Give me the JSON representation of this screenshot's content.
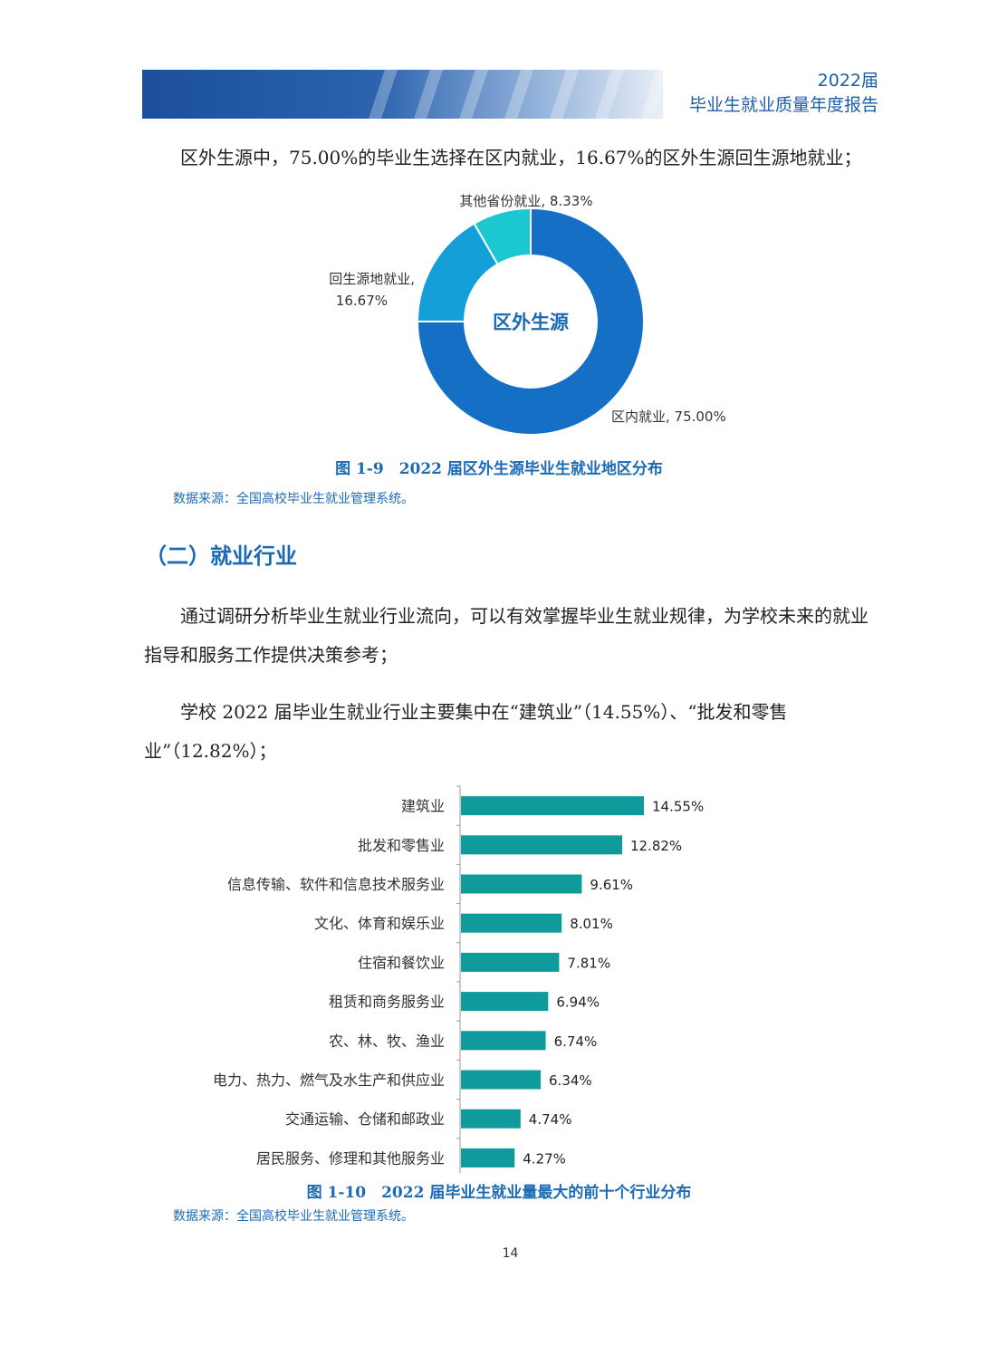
{
  "header": {
    "year_label": "2022届",
    "report_title": "毕业生就业质量年度报告"
  },
  "paragraphs": {
    "p1": "区外生源中，75.00%的毕业生选择在区内就业，16.67%的区外生源回生源地就业；",
    "p2": "通过调研分析毕业生就业行业流向，可以有效掌握毕业生就业规律，为学校未来的就业指导和服务工作提供决策参考；",
    "p3": "学校 2022 届毕业生就业行业主要集中在“建筑业”（14.55%）、“批发和零售业”（12.82%）；"
  },
  "section_heading": "（二）就业行业",
  "figure_1_9": {
    "caption": "图 1-9　2022 届区外生源毕业生就业地区分布",
    "source": "数据来源：全国高校毕业生就业管理系统。"
  },
  "figure_1_10": {
    "caption": "图 1-10　2022 届毕业生就业量最大的前十个行业分布",
    "source": "数据来源：全国高校毕业生就业管理系统。"
  },
  "page_number": "14",
  "colors": {
    "header_blue": "#1b4f9c",
    "heading_blue": "#1b6ab4",
    "bar_teal": "#0f9b9b",
    "donut_main": "#1570c5",
    "donut_mid": "#159fd9",
    "donut_small": "#1cc8d0"
  },
  "chart_data": [
    {
      "type": "pie",
      "center_label": "区外生源",
      "slices": [
        {
          "label": "区内就业",
          "value": 75.0,
          "value_label": "75.00%",
          "color": "#1570c5"
        },
        {
          "label": "回生源地就业",
          "value": 16.67,
          "value_label": "16.67%",
          "color": "#159fd9"
        },
        {
          "label": "其他省份就业",
          "value": 8.33,
          "value_label": "8.33%",
          "color": "#1cc8d0"
        }
      ]
    },
    {
      "type": "bar",
      "orientation": "horizontal",
      "categories": [
        "建筑业",
        "批发和零售业",
        "信息传输、软件和信息技术服务业",
        "文化、体育和娱乐业",
        "住宿和餐饮业",
        "租赁和商务服务业",
        "农、林、牧、渔业",
        "电力、热力、燃气及水生产和供应业",
        "交通运输、仓储和邮政业",
        "居民服务、修理和其他服务业"
      ],
      "values": [
        14.55,
        12.82,
        9.61,
        8.01,
        7.81,
        6.94,
        6.74,
        6.34,
        4.74,
        4.27
      ],
      "value_labels": [
        "14.55%",
        "12.82%",
        "9.61%",
        "8.01%",
        "7.81%",
        "6.94%",
        "6.74%",
        "6.34%",
        "4.74%",
        "4.27%"
      ],
      "xlim": [
        0,
        16
      ],
      "bar_color": "#0f9b9b"
    }
  ]
}
